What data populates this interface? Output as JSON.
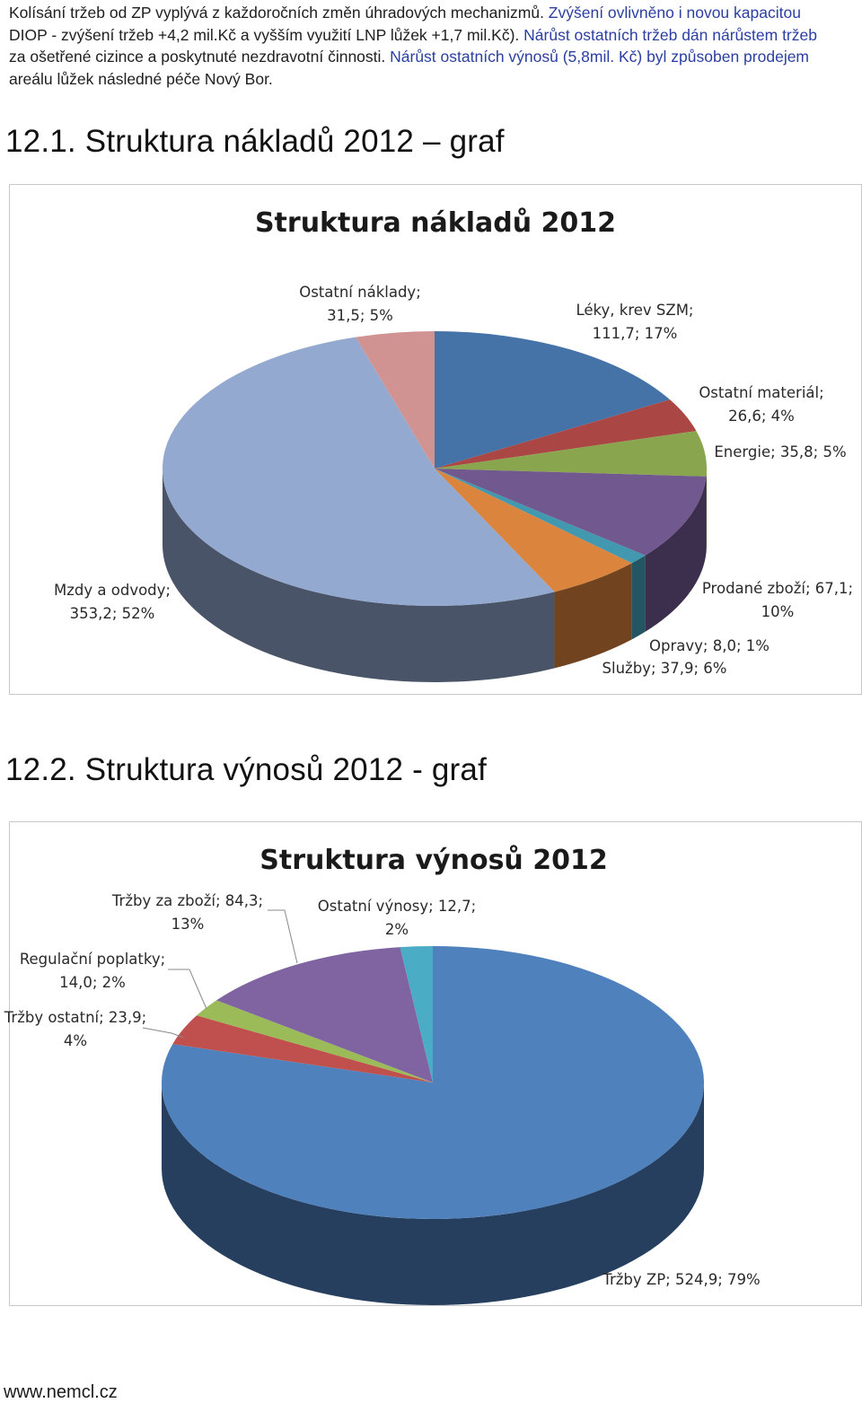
{
  "intro": {
    "line1": "Kolísání tržeb od ZP vyplývá z každoročních změn úhradových mechanizmů.",
    "line1b": " Zvýšení ovlivněno i novou kapacitou",
    "line2": "DIOP - zvýšení tržeb +4,2 mil.Kč a vyšším využití LNP lůžek +1,7 mil.Kč).",
    "line2b": " Nárůst ostatních tržeb dán nárůstem tržeb",
    "line3": "za ošetřené cizince a poskytnuté nezdravotní činnosti.",
    "line3b": " Nárůst ostatních výnosů (5,8mil. Kč) byl způsoben prodejem",
    "line4": "areálu lůžek následné péče Nový Bor."
  },
  "section1": {
    "heading": "12.1. Struktura nákladů 2012 – graf"
  },
  "section2": {
    "heading": "12.2. Struktura výnosů 2012 - graf"
  },
  "footer": {
    "url": "www.nemcl.cz"
  },
  "chart_data": [
    {
      "type": "pie",
      "title": "Struktura nákladů 2012",
      "slices": [
        {
          "name": "Léky, krev SZM",
          "value": 111.7,
          "pct": 17,
          "color": "#4572a7",
          "dark": "#2c4a70",
          "label_lines": [
            "Léky, krev SZM;",
            "111,7; 17%"
          ]
        },
        {
          "name": "Ostatní materiál",
          "value": 26.6,
          "pct": 4,
          "color": "#aa4643",
          "dark": "#6e2d2b",
          "label_lines": [
            "Ostatní materiál;",
            "26,6; 4%"
          ]
        },
        {
          "name": "Energie",
          "value": 35.8,
          "pct": 5,
          "color": "#89a54e",
          "dark": "#586b32",
          "label_lines": [
            "Energie; 35,8; 5%"
          ]
        },
        {
          "name": "Prodané zboží",
          "value": 67.1,
          "pct": 10,
          "color": "#71588f",
          "dark": "#3c2f4d",
          "label_lines": [
            "Prodané zboží; 67,1;",
            "10%"
          ]
        },
        {
          "name": "Opravy",
          "value": 8.0,
          "pct": 1,
          "color": "#4198af",
          "dark": "#245562",
          "label_lines": [
            "Opravy; 8,0; 1%"
          ]
        },
        {
          "name": "Služby",
          "value": 37.9,
          "pct": 6,
          "color": "#db843d",
          "dark": "#71431f",
          "label_lines": [
            "Služby; 37,9; 6%"
          ]
        },
        {
          "name": "Mzdy a odvody",
          "value": 353.2,
          "pct": 52,
          "color": "#93a9cf",
          "dark": "#4a5468",
          "label_lines": [
            "Mzdy a odvody;",
            "353,2; 52%"
          ]
        },
        {
          "name": "Ostatní náklady",
          "value": 31.5,
          "pct": 5,
          "color": "#d19392",
          "dark": "#7a5554",
          "label_lines": [
            "Ostatní náklady;",
            "31,5; 5%"
          ]
        }
      ]
    },
    {
      "type": "pie",
      "title": "Struktura výnosů 2012",
      "slices": [
        {
          "name": "Tržby ZP",
          "value": 524.9,
          "pct": 79,
          "color": "#4f81bd",
          "dark": "#263f5f",
          "label_lines": [
            "Tržby ZP; 524,9; 79%"
          ]
        },
        {
          "name": "Tržby ostatní",
          "value": 23.9,
          "pct": 4,
          "color": "#c0504d",
          "dark": "#702e2c",
          "label_lines": [
            "Tržby ostatní; 23,9;",
            "4%"
          ]
        },
        {
          "name": "Regulační poplatky",
          "value": 14.0,
          "pct": 2,
          "color": "#9bbb59",
          "dark": "#5a6d33",
          "label_lines": [
            "Regulační poplatky;",
            "14,0; 2%"
          ]
        },
        {
          "name": "Tržby za zboží",
          "value": 84.3,
          "pct": 13,
          "color": "#8064a2",
          "dark": "#4a3a5e",
          "label_lines": [
            "Tržby za zboží; 84,3;",
            "13%"
          ]
        },
        {
          "name": "Ostatní výnosy",
          "value": 12.7,
          "pct": 2,
          "color": "#4bacc6",
          "dark": "#2a6474",
          "label_lines": [
            "Ostatní výnosy; 12,7;",
            "2%"
          ]
        }
      ]
    }
  ]
}
